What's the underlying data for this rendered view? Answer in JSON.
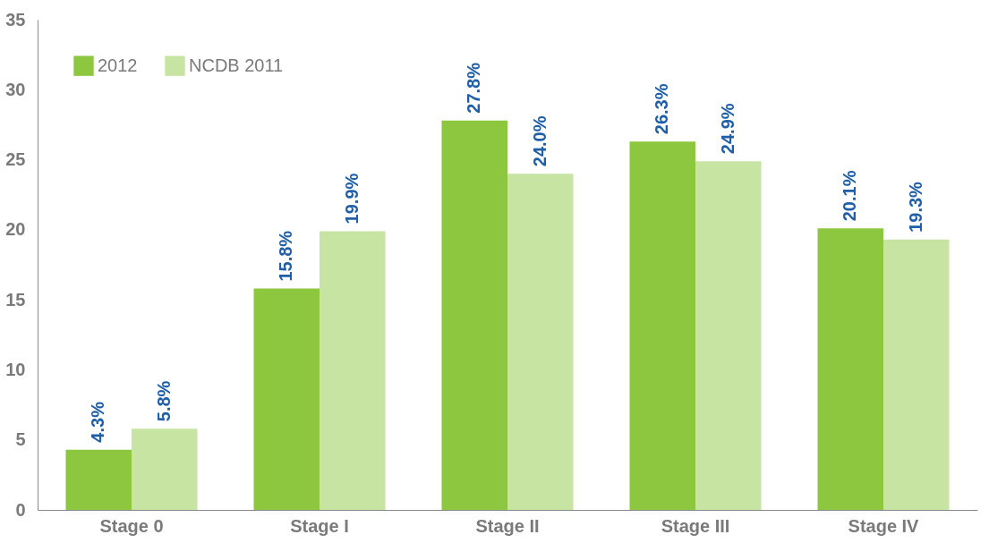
{
  "chart_data": {
    "type": "bar",
    "categories": [
      "Stage 0",
      "Stage I",
      "Stage II",
      "Stage III",
      "Stage IV"
    ],
    "series": [
      {
        "name": "2012",
        "color": "#8dc63f",
        "values": [
          4.3,
          15.8,
          27.8,
          26.3,
          20.1
        ],
        "value_labels": [
          "4.3%",
          "15.8%",
          "27.8%",
          "26.3%",
          "20.1%"
        ]
      },
      {
        "name": "NCDB 2011",
        "color": "#c8e4a3",
        "values": [
          5.8,
          19.9,
          24.0,
          24.9,
          19.3
        ],
        "value_labels": [
          "5.8%",
          "19.9%",
          "24.0%",
          "24.9%",
          "19.3%"
        ]
      }
    ],
    "ylim": [
      0,
      35
    ],
    "yticks": [
      0,
      5,
      10,
      15,
      20,
      25,
      30,
      35
    ],
    "grid": false,
    "legend": "top left"
  }
}
